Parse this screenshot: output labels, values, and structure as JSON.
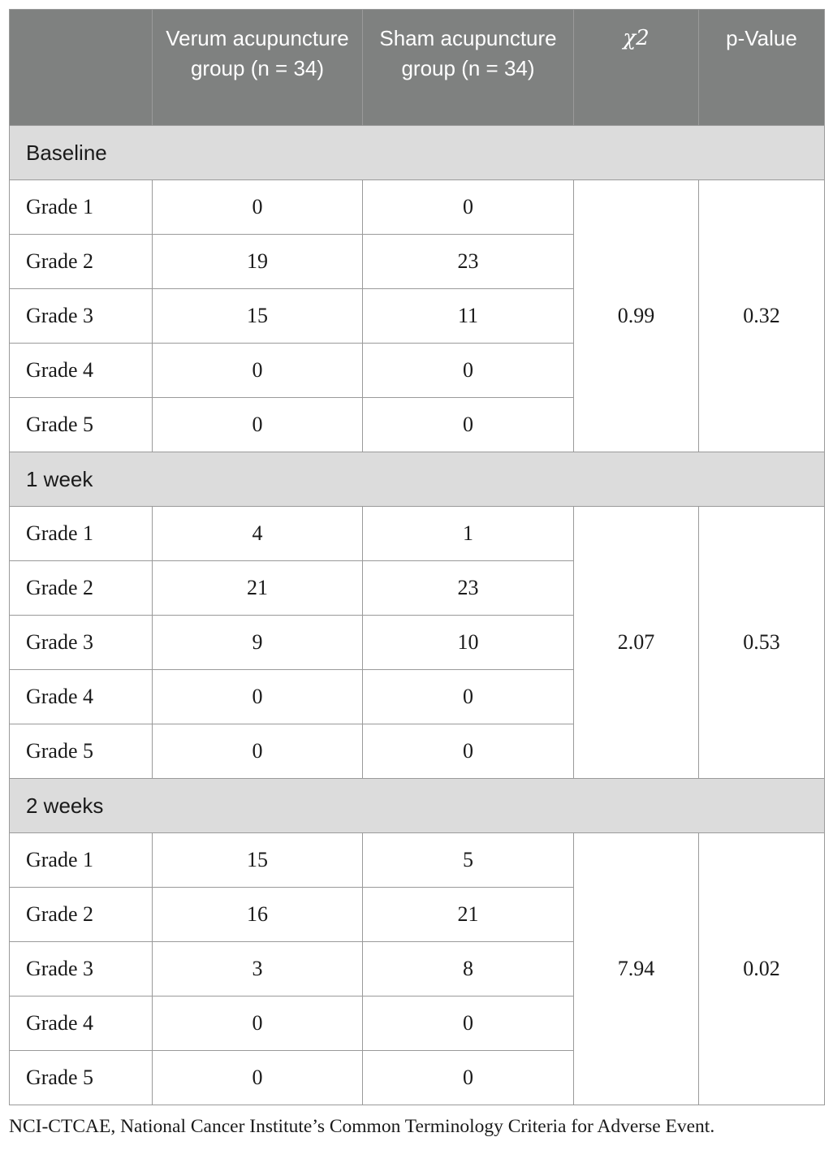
{
  "header": {
    "blank": "",
    "verum": "Verum acupuncture group (n = 34)",
    "sham": "Sham acupuncture group (n = 34)",
    "chi": "χ2",
    "pvalue": "p-Value"
  },
  "sections": [
    {
      "title": "Baseline",
      "rows": [
        {
          "label": "Grade 1",
          "verum": "0",
          "sham": "0"
        },
        {
          "label": "Grade 2",
          "verum": "19",
          "sham": "23"
        },
        {
          "label": "Grade 3",
          "verum": "15",
          "sham": "11"
        },
        {
          "label": "Grade 4",
          "verum": "0",
          "sham": "0"
        },
        {
          "label": "Grade 5",
          "verum": "0",
          "sham": "0"
        }
      ],
      "chi": "0.99",
      "p": "0.32"
    },
    {
      "title": "1 week",
      "rows": [
        {
          "label": "Grade 1",
          "verum": "4",
          "sham": "1"
        },
        {
          "label": "Grade 2",
          "verum": "21",
          "sham": "23"
        },
        {
          "label": "Grade 3",
          "verum": "9",
          "sham": "10"
        },
        {
          "label": "Grade 4",
          "verum": "0",
          "sham": "0"
        },
        {
          "label": "Grade 5",
          "verum": "0",
          "sham": "0"
        }
      ],
      "chi": "2.07",
      "p": "0.53"
    },
    {
      "title": "2 weeks",
      "rows": [
        {
          "label": "Grade 1",
          "verum": "15",
          "sham": "5"
        },
        {
          "label": "Grade 2",
          "verum": "16",
          "sham": "21"
        },
        {
          "label": "Grade 3",
          "verum": "3",
          "sham": "8"
        },
        {
          "label": "Grade 4",
          "verum": "0",
          "sham": "0"
        },
        {
          "label": "Grade 5",
          "verum": "0",
          "sham": "0"
        }
      ],
      "chi": "7.94",
      "p": "0.02"
    }
  ],
  "footnote": "NCI-CTCAE, National Cancer Institute’s Common Terminology Criteria for Adverse Event.",
  "colors": {
    "header_bg": "#7f8180",
    "section_bg": "#dcdcdc",
    "border": "#9a9a9a"
  }
}
